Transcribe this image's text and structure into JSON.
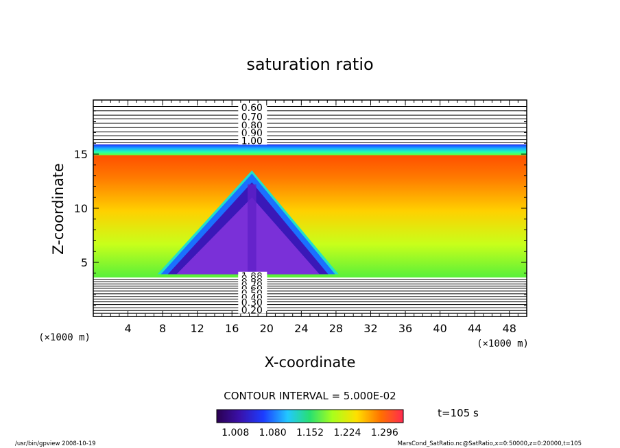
{
  "chart_data": {
    "type": "heatmap",
    "title": "saturation ratio",
    "xlabel": "X-coordinate",
    "ylabel": "Z-coordinate",
    "x_unit": "(×1000 m)",
    "z_unit": "(×1000 m)",
    "xlim": [
      0,
      50
    ],
    "ylim": [
      0,
      20
    ],
    "x_ticks": [
      4,
      8,
      12,
      16,
      20,
      24,
      28,
      32,
      36,
      40,
      44,
      48
    ],
    "y_ticks": [
      5,
      10,
      15
    ],
    "mountain": {
      "left_base": [
        8,
        3.9
      ],
      "peak": [
        18.3,
        13.2
      ],
      "right_base": [
        27.7,
        3.9
      ]
    },
    "upper_contour_labels": [
      "0.60",
      "0.70",
      "0.80",
      "0.90",
      "1.00"
    ],
    "lower_contour_labels": [
      "1.00",
      "0.90",
      "0.80",
      "0.70",
      "0.60",
      "0.50",
      "0.40",
      "0.30",
      "0.20"
    ],
    "contour_interval_text": "CONTOUR INTERVAL = 5.000E-02",
    "colorbar": {
      "min": 0.972,
      "max": 1.332,
      "tick_labels": [
        "1.008",
        "1.080",
        "1.152",
        "1.224",
        "1.296"
      ]
    },
    "time_label": "t=105 s"
  },
  "footer": {
    "left": "/usr/bin/gpview  2008-10-19",
    "right": "MarsCond_SatRatio.nc@SatRatio,x=0:50000,z=0:20000,t=105"
  }
}
